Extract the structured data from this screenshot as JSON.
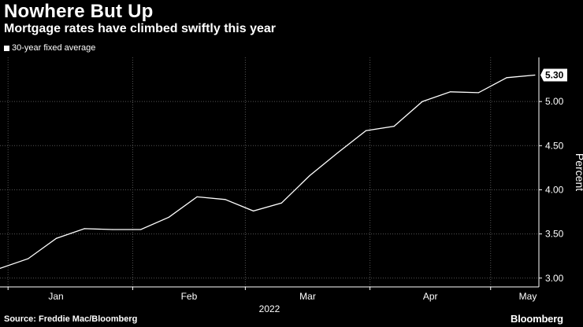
{
  "header": {
    "title": "Nowhere But Up",
    "subtitle": "Mortgage rates have climbed swiftly this year"
  },
  "legend": {
    "label": "30-year fixed average"
  },
  "footer": {
    "source": "Source: Freddie Mac/Bloomberg",
    "brand": "Bloomberg"
  },
  "colors": {
    "background": "#000000",
    "line": "#ffffff",
    "grid": "#555555"
  },
  "chart_data": {
    "type": "line",
    "title": "Nowhere But Up",
    "subtitle": "Mortgage rates have climbed swiftly this year",
    "xlabel": "2022",
    "ylabel": "Percent",
    "x_tick_labels": [
      "Jan",
      "Feb",
      "Mar",
      "Apr",
      "May"
    ],
    "y_tick_labels": [
      "3.00",
      "3.50",
      "4.00",
      "4.50",
      "5.00"
    ],
    "y_ticks": [
      3.0,
      3.5,
      4.0,
      4.5,
      5.0
    ],
    "ylim": [
      2.9,
      5.5
    ],
    "xlim": [
      "2021-12-30",
      "2022-05-13"
    ],
    "grid": true,
    "legend_position": "top-left",
    "end_label": "5.30",
    "series": [
      {
        "name": "30-year fixed average",
        "x": [
          "2021-12-30",
          "2022-01-06",
          "2022-01-13",
          "2022-01-20",
          "2022-01-27",
          "2022-02-03",
          "2022-02-10",
          "2022-02-17",
          "2022-02-24",
          "2022-03-03",
          "2022-03-10",
          "2022-03-17",
          "2022-03-24",
          "2022-03-31",
          "2022-04-07",
          "2022-04-14",
          "2022-04-21",
          "2022-04-28",
          "2022-05-05",
          "2022-05-12"
        ],
        "values": [
          3.11,
          3.22,
          3.45,
          3.56,
          3.55,
          3.55,
          3.69,
          3.92,
          3.89,
          3.76,
          3.85,
          4.16,
          4.42,
          4.67,
          4.72,
          5.0,
          5.11,
          5.1,
          5.27,
          5.3
        ]
      }
    ]
  }
}
